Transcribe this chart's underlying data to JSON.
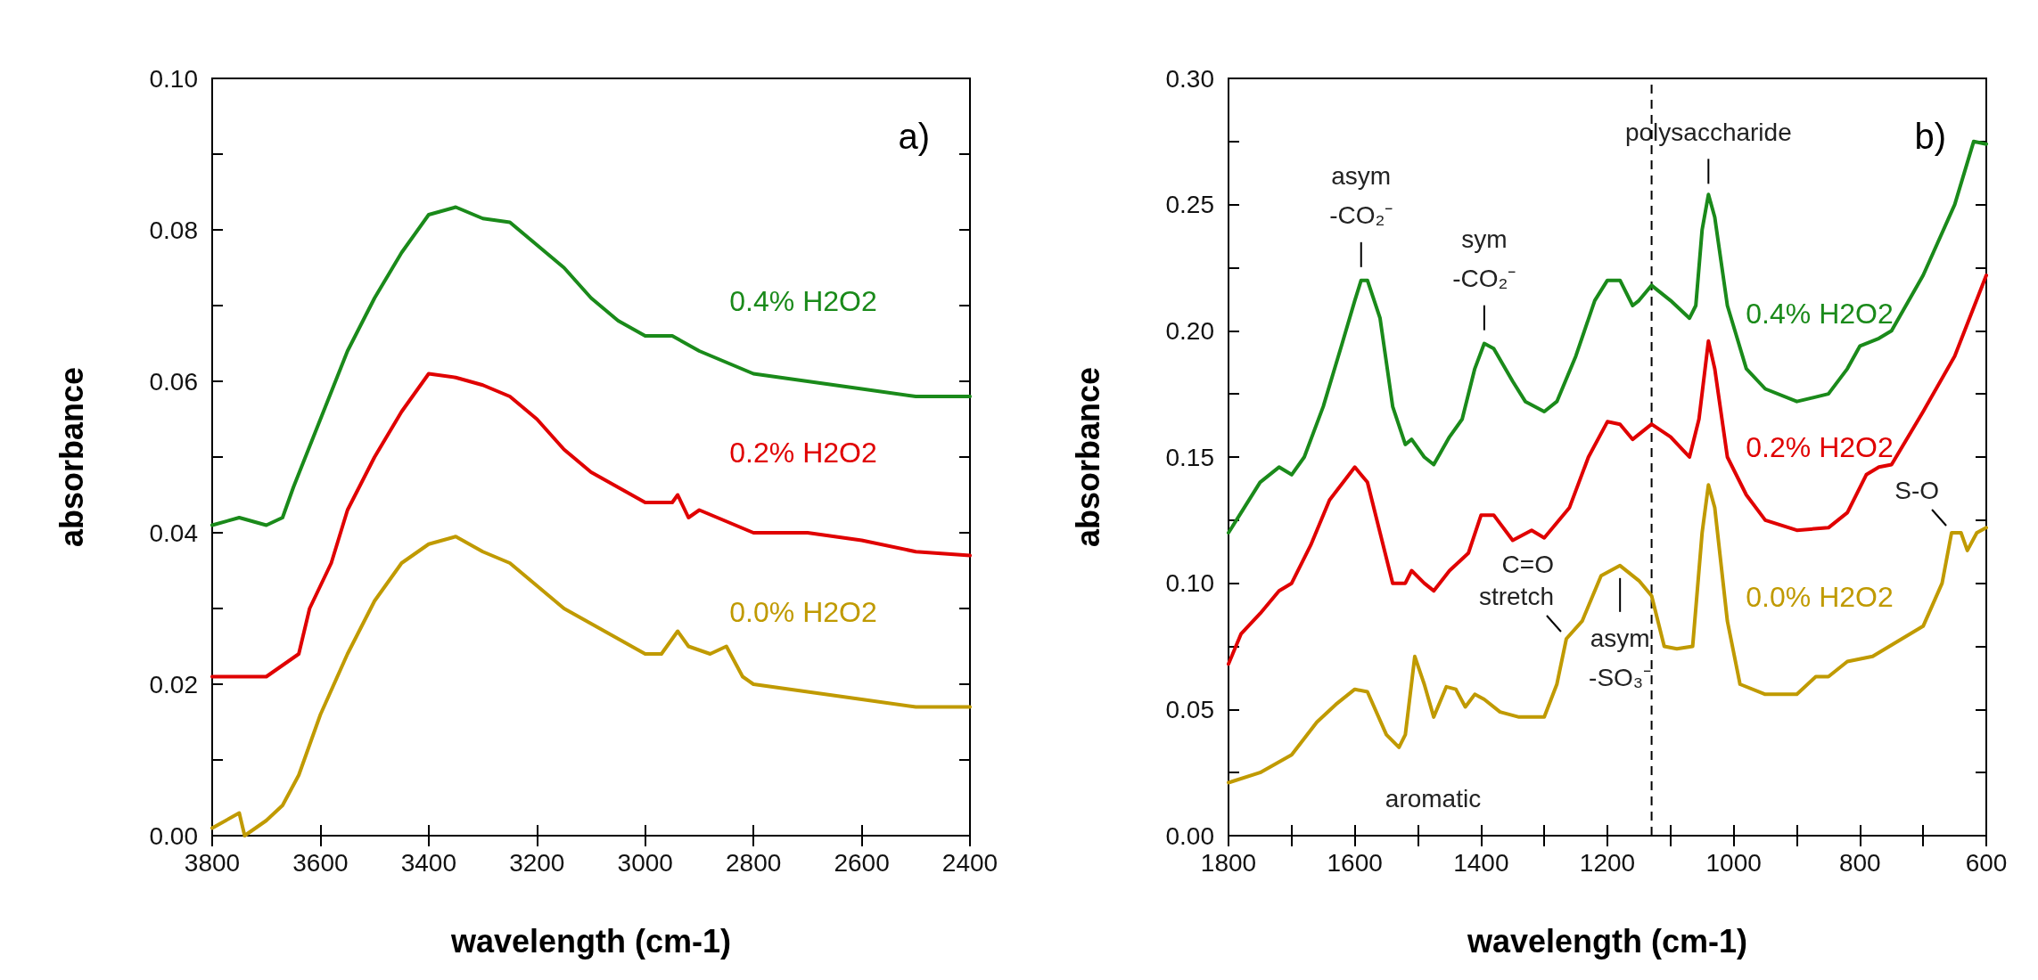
{
  "chart_data": [
    {
      "type": "line",
      "title": "a)",
      "xlabel": "wavelength (cm-1)",
      "ylabel": "absorbance",
      "xlim": [
        3800,
        2400
      ],
      "ylim": [
        0,
        0.1
      ],
      "xticks": [
        3800,
        3600,
        3400,
        3200,
        3000,
        2800,
        2600,
        2400
      ],
      "yticks": [
        {
          "value": 0,
          "label": "0.00"
        },
        {
          "value": 0.01,
          "label": null
        },
        {
          "value": 0.02,
          "label": "0.02"
        },
        {
          "value": 0.03,
          "label": null
        },
        {
          "value": 0.04,
          "label": "0.04"
        },
        {
          "value": 0.05,
          "label": null
        },
        {
          "value": 0.06,
          "label": "0.06"
        },
        {
          "value": 0.07,
          "label": null
        },
        {
          "value": 0.08,
          "label": "0.08"
        },
        {
          "value": 0.09,
          "label": null
        },
        {
          "value": 0.1,
          "label": "0.10"
        }
      ],
      "grid": false,
      "legend": false,
      "marker": "none",
      "line_style": "solid",
      "series": [
        {
          "name": "0.4% H2O2",
          "color": "#1a8a1a",
          "x": [
            3800,
            3750,
            3700,
            3670,
            3650,
            3600,
            3550,
            3500,
            3450,
            3400,
            3350,
            3300,
            3250,
            3200,
            3150,
            3100,
            3050,
            3000,
            2950,
            2900,
            2800,
            2700,
            2600,
            2500,
            2400
          ],
          "values": [
            0.041,
            0.042,
            0.041,
            0.042,
            0.046,
            0.055,
            0.064,
            0.071,
            0.077,
            0.082,
            0.083,
            0.0815,
            0.081,
            0.078,
            0.075,
            0.071,
            0.068,
            0.066,
            0.066,
            0.064,
            0.061,
            0.06,
            0.059,
            0.058,
            0.058
          ]
        },
        {
          "name": "0.2% H2O2",
          "color": "#e00000",
          "x": [
            3800,
            3700,
            3660,
            3640,
            3620,
            3580,
            3550,
            3500,
            3450,
            3400,
            3350,
            3300,
            3250,
            3200,
            3150,
            3100,
            3050,
            3000,
            2950,
            2940,
            2920,
            2900,
            2800,
            2700,
            2600,
            2500,
            2400
          ],
          "values": [
            0.021,
            0.021,
            0.023,
            0.024,
            0.03,
            0.036,
            0.043,
            0.05,
            0.056,
            0.061,
            0.0605,
            0.0595,
            0.058,
            0.055,
            0.051,
            0.048,
            0.046,
            0.044,
            0.044,
            0.045,
            0.042,
            0.043,
            0.04,
            0.04,
            0.039,
            0.0375,
            0.037
          ]
        },
        {
          "name": "0.0% H2O2",
          "color": "#c09a00",
          "x": [
            3800,
            3750,
            3740,
            3700,
            3670,
            3640,
            3600,
            3550,
            3500,
            3450,
            3400,
            3350,
            3300,
            3250,
            3200,
            3150,
            3100,
            3050,
            3000,
            2970,
            2940,
            2920,
            2880,
            2850,
            2820,
            2800,
            2700,
            2600,
            2500,
            2400
          ],
          "values": [
            0.001,
            0.003,
            0.0,
            0.002,
            0.004,
            0.008,
            0.016,
            0.024,
            0.031,
            0.036,
            0.0385,
            0.0395,
            0.0375,
            0.036,
            0.033,
            0.03,
            0.028,
            0.026,
            0.024,
            0.024,
            0.027,
            0.025,
            0.024,
            0.025,
            0.021,
            0.02,
            0.019,
            0.018,
            0.017,
            0.017
          ]
        }
      ]
    },
    {
      "type": "line",
      "title": "b)",
      "xlabel": "wavelength (cm-1)",
      "ylabel": "absorbance",
      "xlim": [
        1800,
        600
      ],
      "ylim": [
        0,
        0.3
      ],
      "xticks": [
        1800,
        {
          "value": 1700,
          "label": null
        },
        1600,
        {
          "value": 1500,
          "label": null
        },
        1400,
        {
          "value": 1300,
          "label": null
        },
        1200,
        {
          "value": 1100,
          "label": null
        },
        1000,
        {
          "value": 900,
          "label": null
        },
        800,
        {
          "value": 700,
          "label": null
        },
        600
      ],
      "yticks": [
        {
          "value": 0,
          "label": "0.00"
        },
        {
          "value": 0.025,
          "label": null
        },
        {
          "value": 0.05,
          "label": "0.05"
        },
        {
          "value": 0.075,
          "label": null
        },
        {
          "value": 0.1,
          "label": "0.10"
        },
        {
          "value": 0.125,
          "label": null
        },
        {
          "value": 0.15,
          "label": "0.15"
        },
        {
          "value": 0.175,
          "label": null
        },
        {
          "value": 0.2,
          "label": "0.20"
        },
        {
          "value": 0.225,
          "label": null
        },
        {
          "value": 0.25,
          "label": "0.25"
        },
        {
          "value": 0.275,
          "label": null
        },
        {
          "value": 0.3,
          "label": "0.30"
        }
      ],
      "grid": false,
      "legend": false,
      "marker": "none",
      "line_style": "solid",
      "ref_lines": [
        {
          "axis": "x",
          "value": 1130,
          "line_style": "dashed",
          "color": "#000000"
        }
      ],
      "annotations": [
        {
          "text": "asym\n-CO₂⁻",
          "x": 1590,
          "y": 0.221
        },
        {
          "text": "sym\n-CO₂⁻",
          "x": 1395,
          "y": 0.196
        },
        {
          "text": "polysaccharide",
          "x": 1040,
          "y": 0.254
        },
        {
          "text": "C=O\nstretch",
          "x": 1265,
          "y": 0.078
        },
        {
          "text": "asym\n-SO₃⁻",
          "x": 1180,
          "y": 0.107
        },
        "aromatic",
        {
          "text": "S-O",
          "x": 655,
          "y": 0.12
        }
      ],
      "series": [
        {
          "name": "0.4% H2O2",
          "color": "#1a8a1a",
          "x": [
            1800,
            1780,
            1750,
            1720,
            1700,
            1680,
            1650,
            1620,
            1600,
            1590,
            1580,
            1560,
            1540,
            1520,
            1510,
            1490,
            1475,
            1450,
            1430,
            1410,
            1395,
            1380,
            1350,
            1330,
            1300,
            1280,
            1250,
            1220,
            1200,
            1180,
            1160,
            1150,
            1130,
            1100,
            1070,
            1060,
            1050,
            1040,
            1030,
            1010,
            980,
            950,
            900,
            850,
            820,
            800,
            770,
            750,
            700,
            650,
            620,
            600
          ],
          "values": [
            0.12,
            0.128,
            0.14,
            0.146,
            0.143,
            0.15,
            0.17,
            0.195,
            0.212,
            0.22,
            0.22,
            0.205,
            0.17,
            0.155,
            0.157,
            0.15,
            0.147,
            0.158,
            0.165,
            0.185,
            0.195,
            0.193,
            0.18,
            0.172,
            0.168,
            0.172,
            0.19,
            0.212,
            0.22,
            0.22,
            0.21,
            0.212,
            0.218,
            0.212,
            0.205,
            0.21,
            0.24,
            0.254,
            0.245,
            0.21,
            0.185,
            0.177,
            0.172,
            0.175,
            0.185,
            0.194,
            0.197,
            0.2,
            0.222,
            0.25,
            0.275,
            0.274
          ]
        },
        {
          "name": "0.2% H2O2",
          "color": "#e00000",
          "x": [
            1800,
            1780,
            1750,
            1720,
            1700,
            1670,
            1640,
            1600,
            1580,
            1560,
            1540,
            1520,
            1510,
            1490,
            1475,
            1450,
            1420,
            1400,
            1380,
            1350,
            1320,
            1300,
            1260,
            1230,
            1200,
            1180,
            1160,
            1130,
            1100,
            1070,
            1055,
            1040,
            1030,
            1010,
            980,
            950,
            900,
            850,
            820,
            790,
            770,
            750,
            700,
            650,
            600
          ],
          "values": [
            0.068,
            0.08,
            0.088,
            0.097,
            0.1,
            0.115,
            0.133,
            0.146,
            0.14,
            0.12,
            0.1,
            0.1,
            0.105,
            0.1,
            0.097,
            0.105,
            0.112,
            0.127,
            0.127,
            0.117,
            0.121,
            0.118,
            0.13,
            0.15,
            0.164,
            0.163,
            0.157,
            0.163,
            0.158,
            0.15,
            0.165,
            0.196,
            0.185,
            0.15,
            0.135,
            0.125,
            0.121,
            0.122,
            0.128,
            0.143,
            0.146,
            0.147,
            0.168,
            0.19,
            0.222
          ]
        },
        {
          "name": "0.0% H2O2",
          "color": "#c09a00",
          "x": [
            1800,
            1750,
            1700,
            1660,
            1630,
            1600,
            1580,
            1550,
            1530,
            1520,
            1505,
            1490,
            1475,
            1455,
            1440,
            1425,
            1410,
            1395,
            1370,
            1340,
            1300,
            1280,
            1265,
            1240,
            1210,
            1180,
            1150,
            1130,
            1110,
            1090,
            1065,
            1050,
            1040,
            1030,
            1010,
            990,
            950,
            900,
            870,
            850,
            820,
            780,
            700,
            670,
            655,
            640,
            630,
            615,
            600
          ],
          "values": [
            0.021,
            0.025,
            0.032,
            0.045,
            0.052,
            0.058,
            0.057,
            0.04,
            0.035,
            0.04,
            0.071,
            0.06,
            0.047,
            0.059,
            0.058,
            0.051,
            0.056,
            0.054,
            0.049,
            0.047,
            0.047,
            0.06,
            0.078,
            0.085,
            0.103,
            0.107,
            0.101,
            0.095,
            0.075,
            0.074,
            0.075,
            0.12,
            0.139,
            0.13,
            0.085,
            0.06,
            0.056,
            0.056,
            0.063,
            0.063,
            0.069,
            0.071,
            0.083,
            0.1,
            0.12,
            0.12,
            0.113,
            0.12,
            0.122
          ]
        }
      ]
    }
  ]
}
